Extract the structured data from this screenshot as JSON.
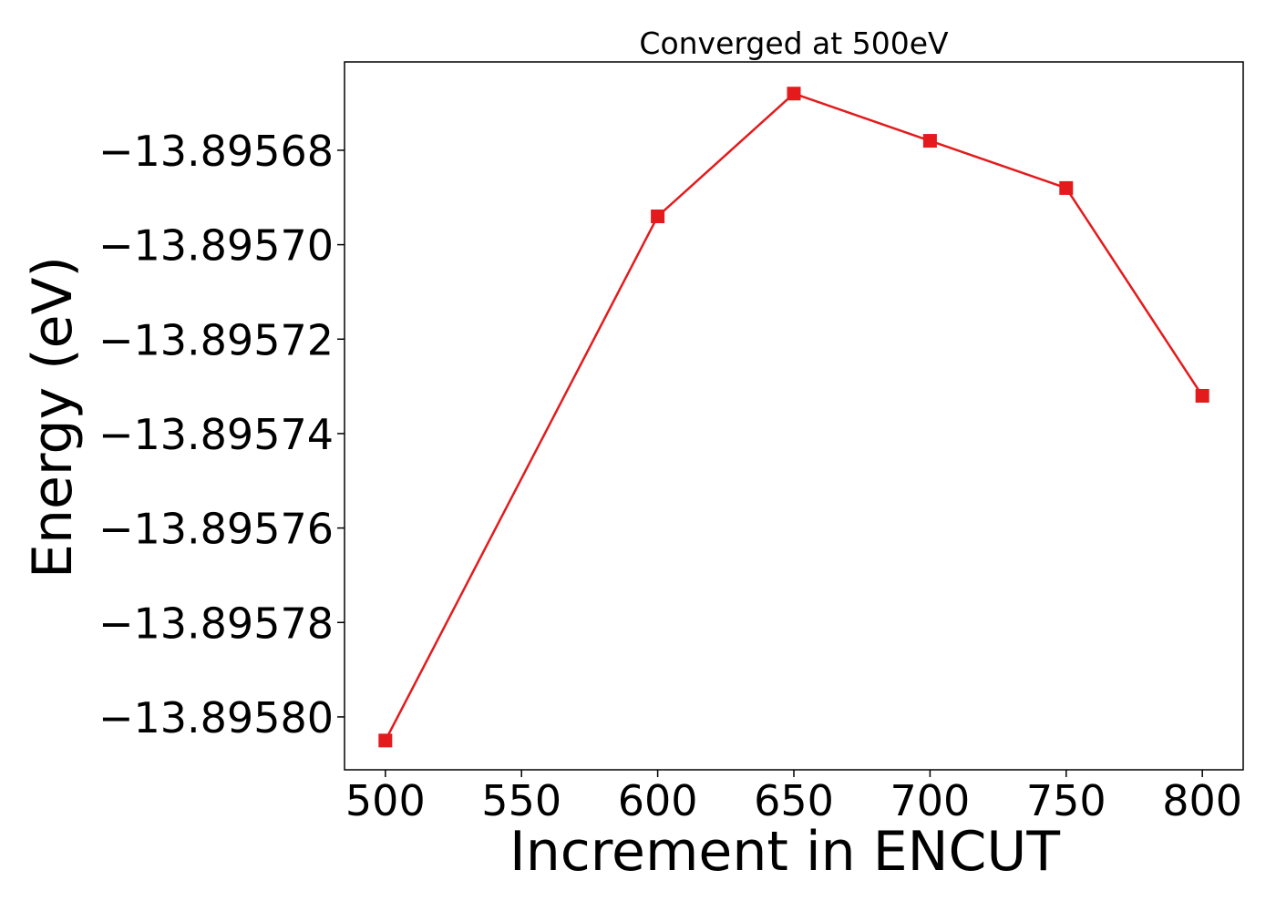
{
  "chart_data": {
    "type": "line",
    "title": "Converged at 500eV",
    "xlabel": "Increment in ENCUT",
    "ylabel": "Energy (eV)",
    "x": [
      500,
      600,
      650,
      700,
      750,
      800
    ],
    "series": [
      {
        "values": [
          -13.895805,
          -13.895694,
          -13.895668,
          -13.895678,
          -13.895688,
          -13.895732
        ],
        "color": "#e41a1c",
        "marker": "square"
      }
    ],
    "xticks": [
      500,
      550,
      600,
      650,
      700,
      750,
      800
    ],
    "xtick_labels": [
      "500",
      "550",
      "600",
      "650",
      "700",
      "750",
      "800"
    ],
    "yticks": [
      -13.8958,
      -13.89578,
      -13.89576,
      -13.89574,
      -13.89572,
      -13.8957,
      -13.89568
    ],
    "ytick_labels": [
      "−13.89580",
      "−13.89578",
      "−13.89576",
      "−13.89574",
      "−13.89572",
      "−13.89570",
      "−13.89568"
    ],
    "xlim": [
      485,
      815
    ],
    "ylim": [
      -13.8958112,
      -13.8956613
    ],
    "grid": false,
    "legend": "none"
  }
}
